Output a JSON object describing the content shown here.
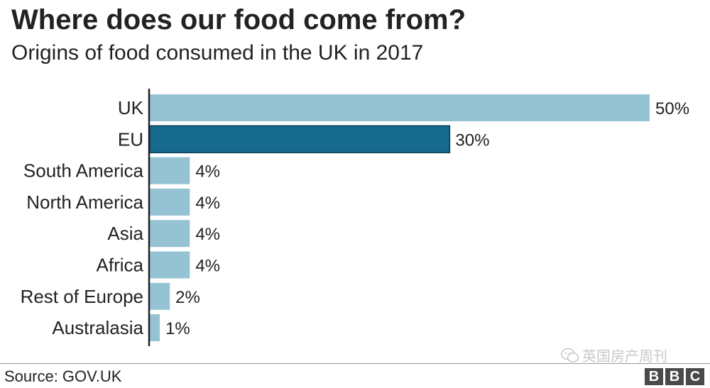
{
  "chart_data": {
    "type": "bar",
    "orientation": "horizontal",
    "title": "Where does our food come from?",
    "subtitle": "Origins of food consumed in the UK in 2017",
    "categories": [
      "UK",
      "EU",
      "South America",
      "North America",
      "Asia",
      "Africa",
      "Rest of Europe",
      "Australasia"
    ],
    "values": [
      50,
      30,
      4,
      4,
      4,
      4,
      2,
      1
    ],
    "value_labels": [
      "50%",
      "30%",
      "4%",
      "4%",
      "4%",
      "4%",
      "2%",
      "1%"
    ],
    "unit": "%",
    "xlim": [
      0,
      50
    ],
    "grid": false,
    "highlight_category": "EU",
    "colors": {
      "bar": "#96c3d3",
      "highlight": "#156a8d",
      "axis": "#222222"
    }
  },
  "source": "Source: GOV.UK",
  "watermark": "英国房产周刊",
  "logo": [
    "B",
    "B",
    "C"
  ]
}
